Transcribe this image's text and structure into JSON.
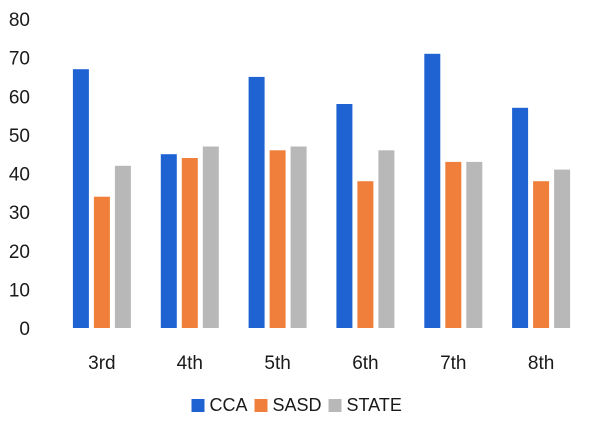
{
  "chart_data": {
    "type": "bar",
    "categories": [
      "3rd",
      "4th",
      "5th",
      "6th",
      "7th",
      "8th"
    ],
    "series": [
      {
        "name": "CCA",
        "color": "#1f63d2",
        "values": [
          67,
          45,
          65,
          58,
          71,
          57
        ]
      },
      {
        "name": "SASD",
        "color": "#ef7f3a",
        "values": [
          34,
          44,
          46,
          38,
          43,
          38
        ]
      },
      {
        "name": "STATE",
        "color": "#b8b8b8",
        "values": [
          42,
          47,
          47,
          46,
          43,
          41
        ]
      }
    ],
    "ylim": [
      0,
      80
    ],
    "yticks": [
      0,
      10,
      20,
      30,
      40,
      50,
      60,
      70,
      80
    ],
    "grid": false,
    "legend_position": "bottom-center"
  }
}
